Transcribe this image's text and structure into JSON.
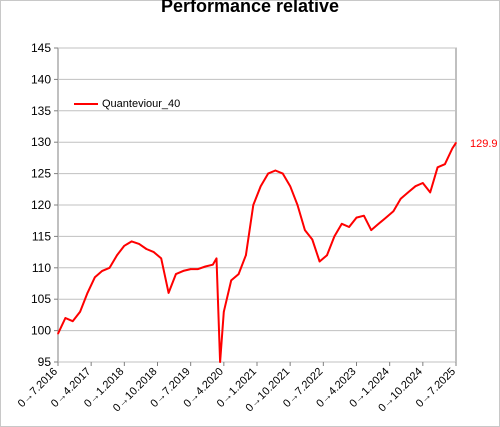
{
  "chart_data": {
    "type": "line",
    "title": "Performance relative",
    "ylim": [
      95,
      145
    ],
    "yticks": [
      95,
      100,
      105,
      110,
      115,
      120,
      125,
      130,
      135,
      140,
      145
    ],
    "grid": true,
    "legend_position": "top-left",
    "xtick_labels": [
      "0→7.2016",
      "0→4.2017",
      "0→1.2018",
      "0→10.2018",
      "0→7.2019",
      "0→4.2020",
      "0→1.2021",
      "0→10.2021",
      "0→7.2022",
      "0→4.2023",
      "0→1.2024",
      "0→10.2024",
      "0→7.2025"
    ],
    "x_range": [
      "2016-07",
      "2025-07"
    ],
    "series": [
      {
        "name": "Quanteviour_40",
        "color": "#ff0000",
        "last_value_label": "129.9",
        "x": [
          "2016-07",
          "2016-09",
          "2016-11",
          "2017-01",
          "2017-03",
          "2017-05",
          "2017-07",
          "2017-09",
          "2017-11",
          "2018-01",
          "2018-03",
          "2018-05",
          "2018-07",
          "2018-09",
          "2018-11",
          "2019-01",
          "2019-03",
          "2019-05",
          "2019-07",
          "2019-09",
          "2019-11",
          "2020-01",
          "2020-02",
          "2020-03",
          "2020-04",
          "2020-06",
          "2020-08",
          "2020-10",
          "2020-12",
          "2021-02",
          "2021-04",
          "2021-06",
          "2021-08",
          "2021-10",
          "2021-12",
          "2022-02",
          "2022-04",
          "2022-06",
          "2022-08",
          "2022-10",
          "2022-12",
          "2023-02",
          "2023-04",
          "2023-06",
          "2023-08",
          "2023-10",
          "2023-12",
          "2024-02",
          "2024-04",
          "2024-06",
          "2024-08",
          "2024-10",
          "2024-12",
          "2025-02",
          "2025-04",
          "2025-06",
          "2025-07"
        ],
        "values": [
          99.5,
          102,
          101.5,
          103,
          106,
          108.5,
          109.5,
          110,
          112,
          113.5,
          114.2,
          113.8,
          113,
          112.5,
          111.5,
          106,
          109,
          109.5,
          109.8,
          109.8,
          110.2,
          110.5,
          111.5,
          95,
          103,
          108,
          109,
          112,
          120,
          123,
          125,
          125.5,
          125,
          123,
          120,
          116,
          114.5,
          111,
          112,
          115,
          117,
          116.5,
          118,
          118.3,
          116,
          117,
          118,
          119,
          121,
          122,
          123,
          123.5,
          122,
          126,
          126.5,
          129,
          129.9
        ]
      }
    ]
  }
}
